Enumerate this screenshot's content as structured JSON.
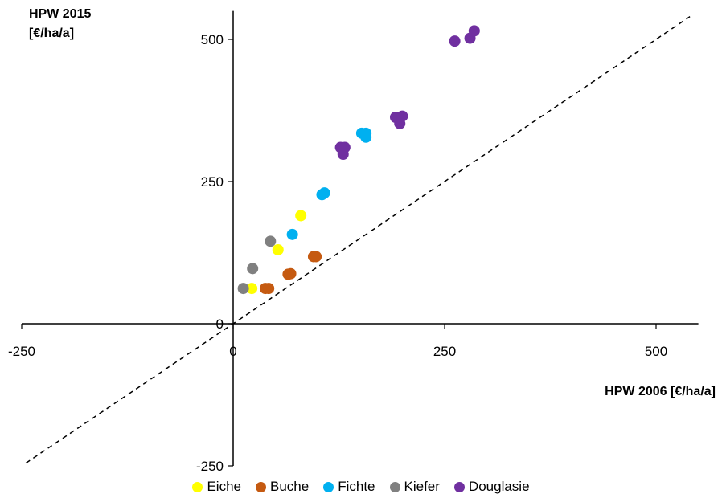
{
  "chart_data": {
    "type": "scatter",
    "title": "",
    "ylabel_lines": [
      "HPW 2015",
      "[€/ha/a]"
    ],
    "xlabel": "HPW 2006 [€/ha/a]",
    "xlim": [
      -250,
      550
    ],
    "ylim": [
      -250,
      550
    ],
    "xticks": [
      -250,
      0,
      250,
      500
    ],
    "yticks": [
      -250,
      0,
      250,
      500
    ],
    "xtick_labels": [
      "-250",
      "0",
      "250",
      "500"
    ],
    "ytick_labels": [
      "-250",
      "0",
      "250",
      "500"
    ],
    "grid": false,
    "reference_line": "y = x (dashed)",
    "legend_position": "bottom",
    "series": [
      {
        "name": "Eiche",
        "color": "#ffff00",
        "points": [
          [
            22,
            62
          ],
          [
            53,
            130
          ],
          [
            80,
            190
          ]
        ]
      },
      {
        "name": "Buche",
        "color": "#c55a11",
        "points": [
          [
            38,
            62
          ],
          [
            42,
            62
          ],
          [
            65,
            87
          ],
          [
            68,
            88
          ],
          [
            95,
            118
          ],
          [
            98,
            118
          ]
        ]
      },
      {
        "name": "Fichte",
        "color": "#00b0f0",
        "points": [
          [
            70,
            157
          ],
          [
            105,
            227
          ],
          [
            108,
            230
          ],
          [
            152,
            335
          ],
          [
            157,
            335
          ],
          [
            157,
            328
          ]
        ]
      },
      {
        "name": "Kiefer",
        "color": "#808080",
        "points": [
          [
            12,
            62
          ],
          [
            23,
            97
          ],
          [
            44,
            145
          ]
        ]
      },
      {
        "name": "Douglasie",
        "color": "#7030a0",
        "points": [
          [
            127,
            310
          ],
          [
            132,
            310
          ],
          [
            130,
            298
          ],
          [
            192,
            363
          ],
          [
            197,
            352
          ],
          [
            200,
            365
          ],
          [
            262,
            497
          ],
          [
            280,
            502
          ],
          [
            285,
            515
          ]
        ]
      }
    ]
  }
}
